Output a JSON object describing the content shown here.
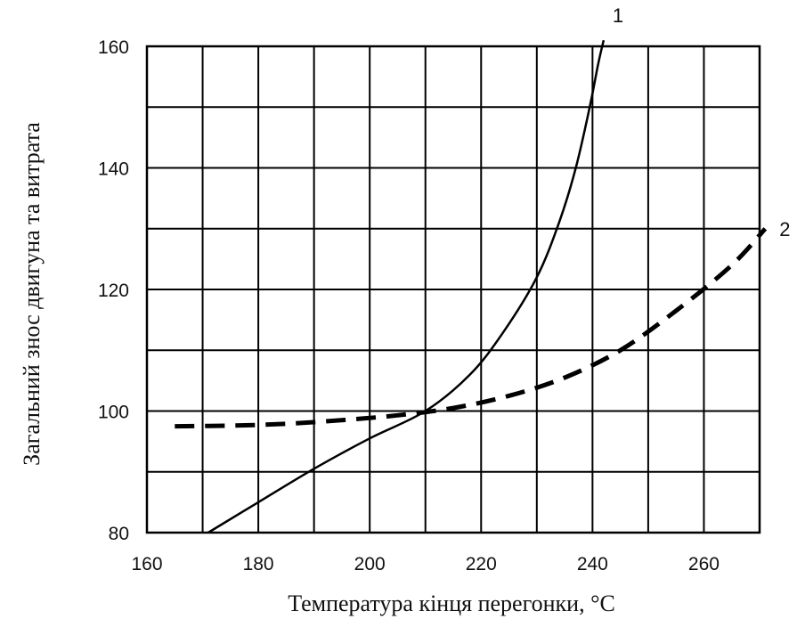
{
  "chart_data": {
    "type": "line",
    "xlabel": "Температура кінця перегонки, °С",
    "ylabel": "Загальний знос двигуна та витрата",
    "x_ticks": [
      160,
      180,
      200,
      220,
      240,
      260
    ],
    "y_ticks": [
      80,
      100,
      120,
      140,
      160
    ],
    "xlim": [
      160,
      270
    ],
    "ylim": [
      80,
      160
    ],
    "grid": true,
    "series": [
      {
        "name": "1",
        "style": "solid",
        "color": "#000000",
        "points": [
          [
            171,
            80
          ],
          [
            180,
            85
          ],
          [
            190,
            90.5
          ],
          [
            200,
            95.5
          ],
          [
            210,
            100
          ],
          [
            218,
            106
          ],
          [
            224,
            113
          ],
          [
            230,
            122
          ],
          [
            234,
            131
          ],
          [
            237,
            140
          ],
          [
            239.5,
            150
          ],
          [
            241,
            157
          ],
          [
            242,
            161
          ]
        ]
      },
      {
        "name": "2",
        "style": "dashed",
        "color": "#000000",
        "points": [
          [
            165,
            97.5
          ],
          [
            175,
            97.6
          ],
          [
            185,
            97.9
          ],
          [
            195,
            98.5
          ],
          [
            205,
            99.3
          ],
          [
            215,
            100.5
          ],
          [
            225,
            102.5
          ],
          [
            235,
            105.5
          ],
          [
            245,
            110
          ],
          [
            255,
            116.5
          ],
          [
            265,
            124
          ],
          [
            271,
            130
          ]
        ]
      }
    ]
  }
}
